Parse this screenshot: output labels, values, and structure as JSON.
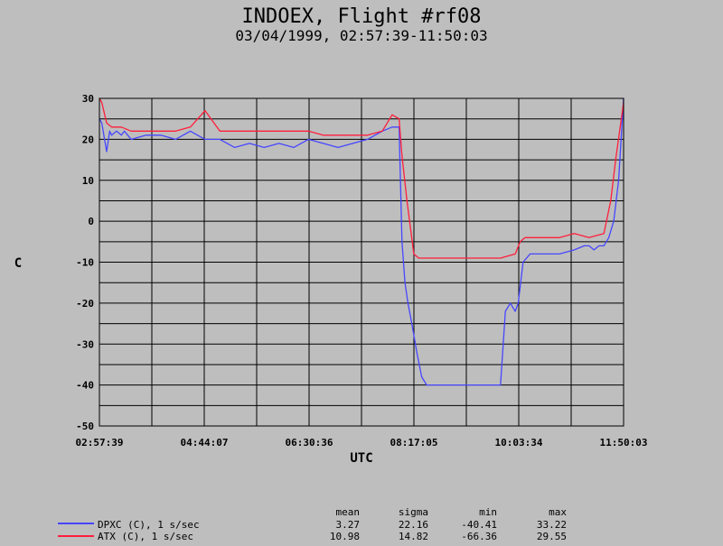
{
  "chart_data": {
    "type": "line",
    "title": "INDOEX, Flight #rf08",
    "subtitle": "03/04/1999, 02:57:39-11:50:03",
    "xlabel": "UTC",
    "ylabel": "C",
    "ylim": [
      -50,
      30
    ],
    "yticks": [
      -50,
      -40,
      -30,
      -20,
      -10,
      0,
      10,
      20,
      30
    ],
    "xticks": [
      "02:57:39",
      "04:44:07",
      "06:30:36",
      "08:17:05",
      "10:03:34",
      "11:50:03"
    ],
    "grid": true,
    "stats_headers": [
      "mean",
      "sigma",
      "min",
      "max"
    ],
    "series": [
      {
        "name": "DPXC (C), 1 s/sec",
        "color": "#4646ff",
        "stats": [
          "3.27",
          "22.16",
          "-40.41",
          "33.22"
        ],
        "x": [
          "02:57:39",
          "03:00:00",
          "03:05:00",
          "03:08:00",
          "03:10:00",
          "03:15:00",
          "03:20:00",
          "03:23:00",
          "03:30:00",
          "03:45:00",
          "04:00:00",
          "04:15:00",
          "04:30:00",
          "04:45:00",
          "05:00:00",
          "05:15:00",
          "05:30:00",
          "05:45:00",
          "06:00:00",
          "06:15:00",
          "06:30:00",
          "06:45:00",
          "07:00:00",
          "07:15:00",
          "07:30:00",
          "07:45:00",
          "07:55:00",
          "08:02:00",
          "08:05:00",
          "08:08:00",
          "08:11:00",
          "08:15:00",
          "08:20:00",
          "08:25:00",
          "08:30:00",
          "08:40:00",
          "09:00:00",
          "09:15:00",
          "09:30:00",
          "09:45:00",
          "09:50:00",
          "09:55:00",
          "10:00:00",
          "10:03:00",
          "10:08:00",
          "10:15:00",
          "10:30:00",
          "10:45:00",
          "11:00:00",
          "11:10:00",
          "11:15:00",
          "11:20:00",
          "11:25:00",
          "11:30:00",
          "11:35:00",
          "11:40:00",
          "11:45:00",
          "11:50:03"
        ],
        "y": [
          25,
          24,
          17,
          22,
          21,
          22,
          21,
          22,
          20,
          21,
          21,
          20,
          22,
          20,
          20,
          18,
          19,
          18,
          19,
          18,
          20,
          19,
          18,
          19,
          20,
          22,
          23,
          23,
          -5,
          -15,
          -20,
          -25,
          -32,
          -38,
          -40,
          -40,
          -40,
          -40,
          -40,
          -40,
          -22,
          -20,
          -22,
          -20,
          -10,
          -8,
          -8,
          -8,
          -7,
          -6,
          -6,
          -7,
          -6,
          -6,
          -4,
          0,
          10,
          30
        ]
      },
      {
        "name": "ATX (C), 1 s/sec",
        "color": "#ff1e3c",
        "stats": [
          "10.98",
          "14.82",
          "-66.36",
          "29.55"
        ],
        "x": [
          "02:57:39",
          "03:00:00",
          "03:05:00",
          "03:10:00",
          "03:15:00",
          "03:20:00",
          "03:30:00",
          "03:45:00",
          "04:00:00",
          "04:15:00",
          "04:30:00",
          "04:45:00",
          "05:00:00",
          "05:15:00",
          "05:30:00",
          "05:45:00",
          "06:00:00",
          "06:15:00",
          "06:30:00",
          "06:45:00",
          "07:00:00",
          "07:15:00",
          "07:30:00",
          "07:45:00",
          "07:55:00",
          "08:02:00",
          "08:05:00",
          "08:10:00",
          "08:17:00",
          "08:22:00",
          "08:30:00",
          "09:00:00",
          "09:30:00",
          "09:45:00",
          "10:00:00",
          "10:05:00",
          "10:10:00",
          "10:20:00",
          "10:45:00",
          "11:00:00",
          "11:15:00",
          "11:30:00",
          "11:37:00",
          "11:42:00",
          "11:46:00",
          "11:50:03"
        ],
        "y": [
          30,
          29,
          24,
          23,
          23,
          23,
          22,
          22,
          22,
          22,
          23,
          27,
          22,
          22,
          22,
          22,
          22,
          22,
          22,
          21,
          21,
          21,
          21,
          22,
          26,
          25,
          16,
          5,
          -8,
          -9,
          -9,
          -9,
          -9,
          -9,
          -8,
          -5,
          -4,
          -4,
          -4,
          -3,
          -4,
          -3,
          5,
          15,
          22,
          29
        ]
      }
    ]
  }
}
